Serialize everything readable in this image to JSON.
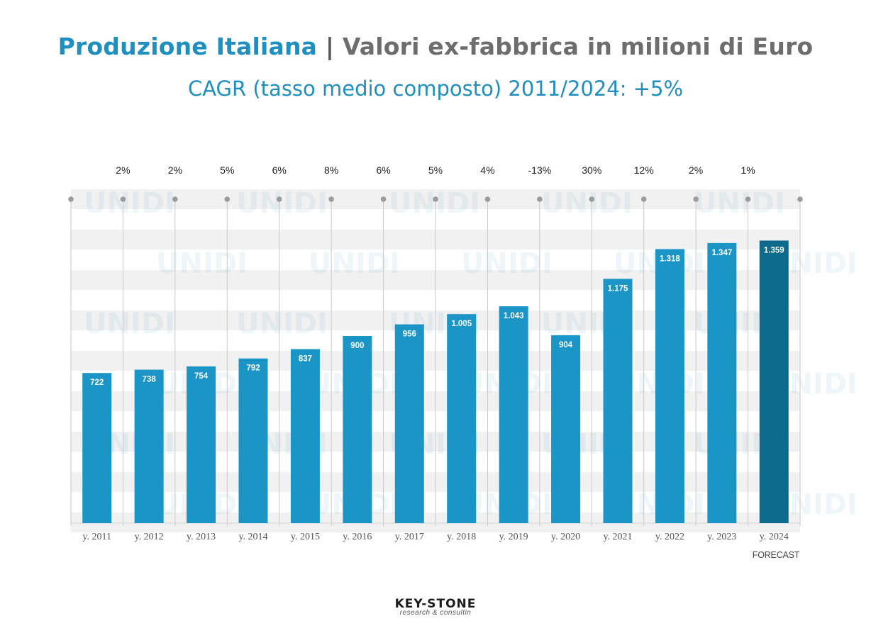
{
  "header": {
    "title_blue": "Produzione Italiana",
    "title_sep": "|",
    "title_grey": "Valori ex-fabbrica in milioni di Euro",
    "subtitle": "CAGR (tasso medio composto) 2011/2024: +5%"
  },
  "footer": {
    "forecast_note": "FORECAST",
    "logo_wordmark": "KEY-STONE",
    "logo_tagline": "research & consultin"
  },
  "watermark": {
    "text": "UNIDI"
  },
  "colors": {
    "bar": "#1b94c6",
    "bar_forecast": "#0d6c8e",
    "title_blue": "#1f8fbf",
    "title_grey": "#6d6d6d",
    "grid_line": "#c9c9c9",
    "stripe": "#f1f1f1"
  },
  "chart_data": {
    "type": "bar",
    "title": "Produzione Italiana | Valori ex-fabbrica in milioni di Euro",
    "xlabel": "",
    "ylabel": "",
    "ylim": [
      0,
      1500
    ],
    "categories": [
      "y. 2011",
      "y. 2012",
      "y. 2013",
      "y. 2014",
      "y. 2015",
      "y. 2016",
      "y. 2017",
      "y. 2018",
      "y. 2019",
      "y. 2020",
      "y. 2021",
      "y. 2022",
      "y. 2023",
      "y. 2024"
    ],
    "values": [
      722,
      738,
      754,
      792,
      837,
      900,
      956,
      1005,
      1043,
      904,
      1175,
      1318,
      1347,
      1359
    ],
    "value_labels": [
      "722",
      "738",
      "754",
      "792",
      "837",
      "900",
      "956",
      "1.005",
      "1.043",
      "904",
      "1.175",
      "1.318",
      "1.347",
      "1.359"
    ],
    "growth_labels": [
      "2%",
      "2%",
      "5%",
      "6%",
      "8%",
      "6%",
      "5%",
      "4%",
      "-13%",
      "30%",
      "12%",
      "2%",
      "1%"
    ],
    "forecast_index": 13
  }
}
